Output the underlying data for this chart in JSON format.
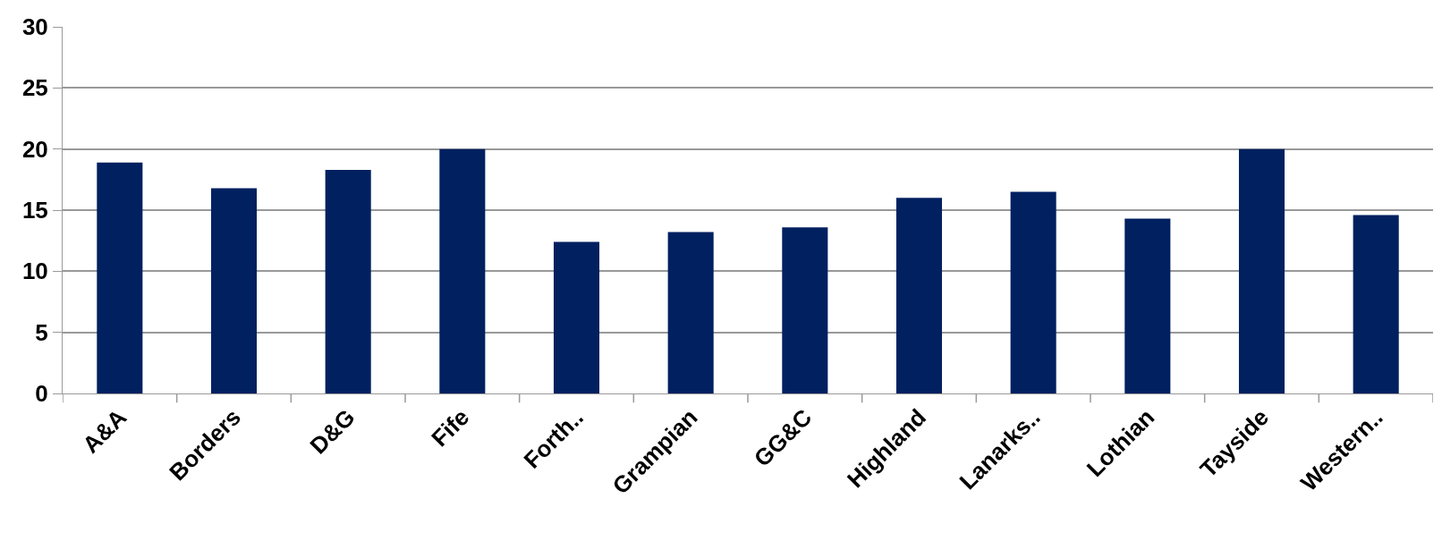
{
  "chart_data": {
    "type": "bar",
    "categories": [
      "A&A",
      "Borders",
      "D&G",
      "Fife",
      "Forth..",
      "Grampian",
      "GG&C",
      "Highland",
      "Lanarks..",
      "Lothian",
      "Tayside",
      "Western.."
    ],
    "values": [
      18.9,
      16.8,
      18.3,
      20.0,
      12.4,
      13.2,
      13.6,
      16.0,
      16.5,
      14.3,
      20.0,
      14.6
    ],
    "color": "#002060",
    "ylim": [
      0,
      30
    ],
    "yticks": [
      0,
      5,
      10,
      15,
      20,
      25,
      30
    ],
    "grid": "y"
  }
}
